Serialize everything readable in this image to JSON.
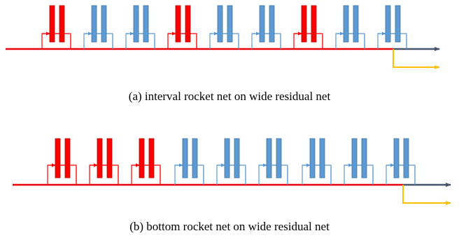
{
  "colors": {
    "rocket": "#ff0000",
    "residual": "#5b9bd5",
    "residual_dark": "#41719c",
    "trunk": "#e8000b",
    "trunk_arrow": "#44546a",
    "branch": "#ffc000"
  },
  "diagrams": [
    {
      "id": "a",
      "caption": "(a)  interval rocket net on wide residual net",
      "groups": [
        {
          "blocks": [
            "rocket",
            "residual",
            "residual"
          ]
        },
        {
          "blocks": [
            "rocket",
            "residual",
            "residual"
          ]
        },
        {
          "blocks": [
            "rocket",
            "residual",
            "residual"
          ]
        }
      ]
    },
    {
      "id": "b",
      "caption": "(b)  bottom rocket net on wide residual net",
      "groups": [
        {
          "blocks": [
            "rocket",
            "rocket",
            "rocket"
          ]
        },
        {
          "blocks": [
            "residual",
            "residual",
            "residual"
          ]
        },
        {
          "blocks": [
            "residual",
            "residual",
            "residual"
          ]
        }
      ]
    }
  ]
}
